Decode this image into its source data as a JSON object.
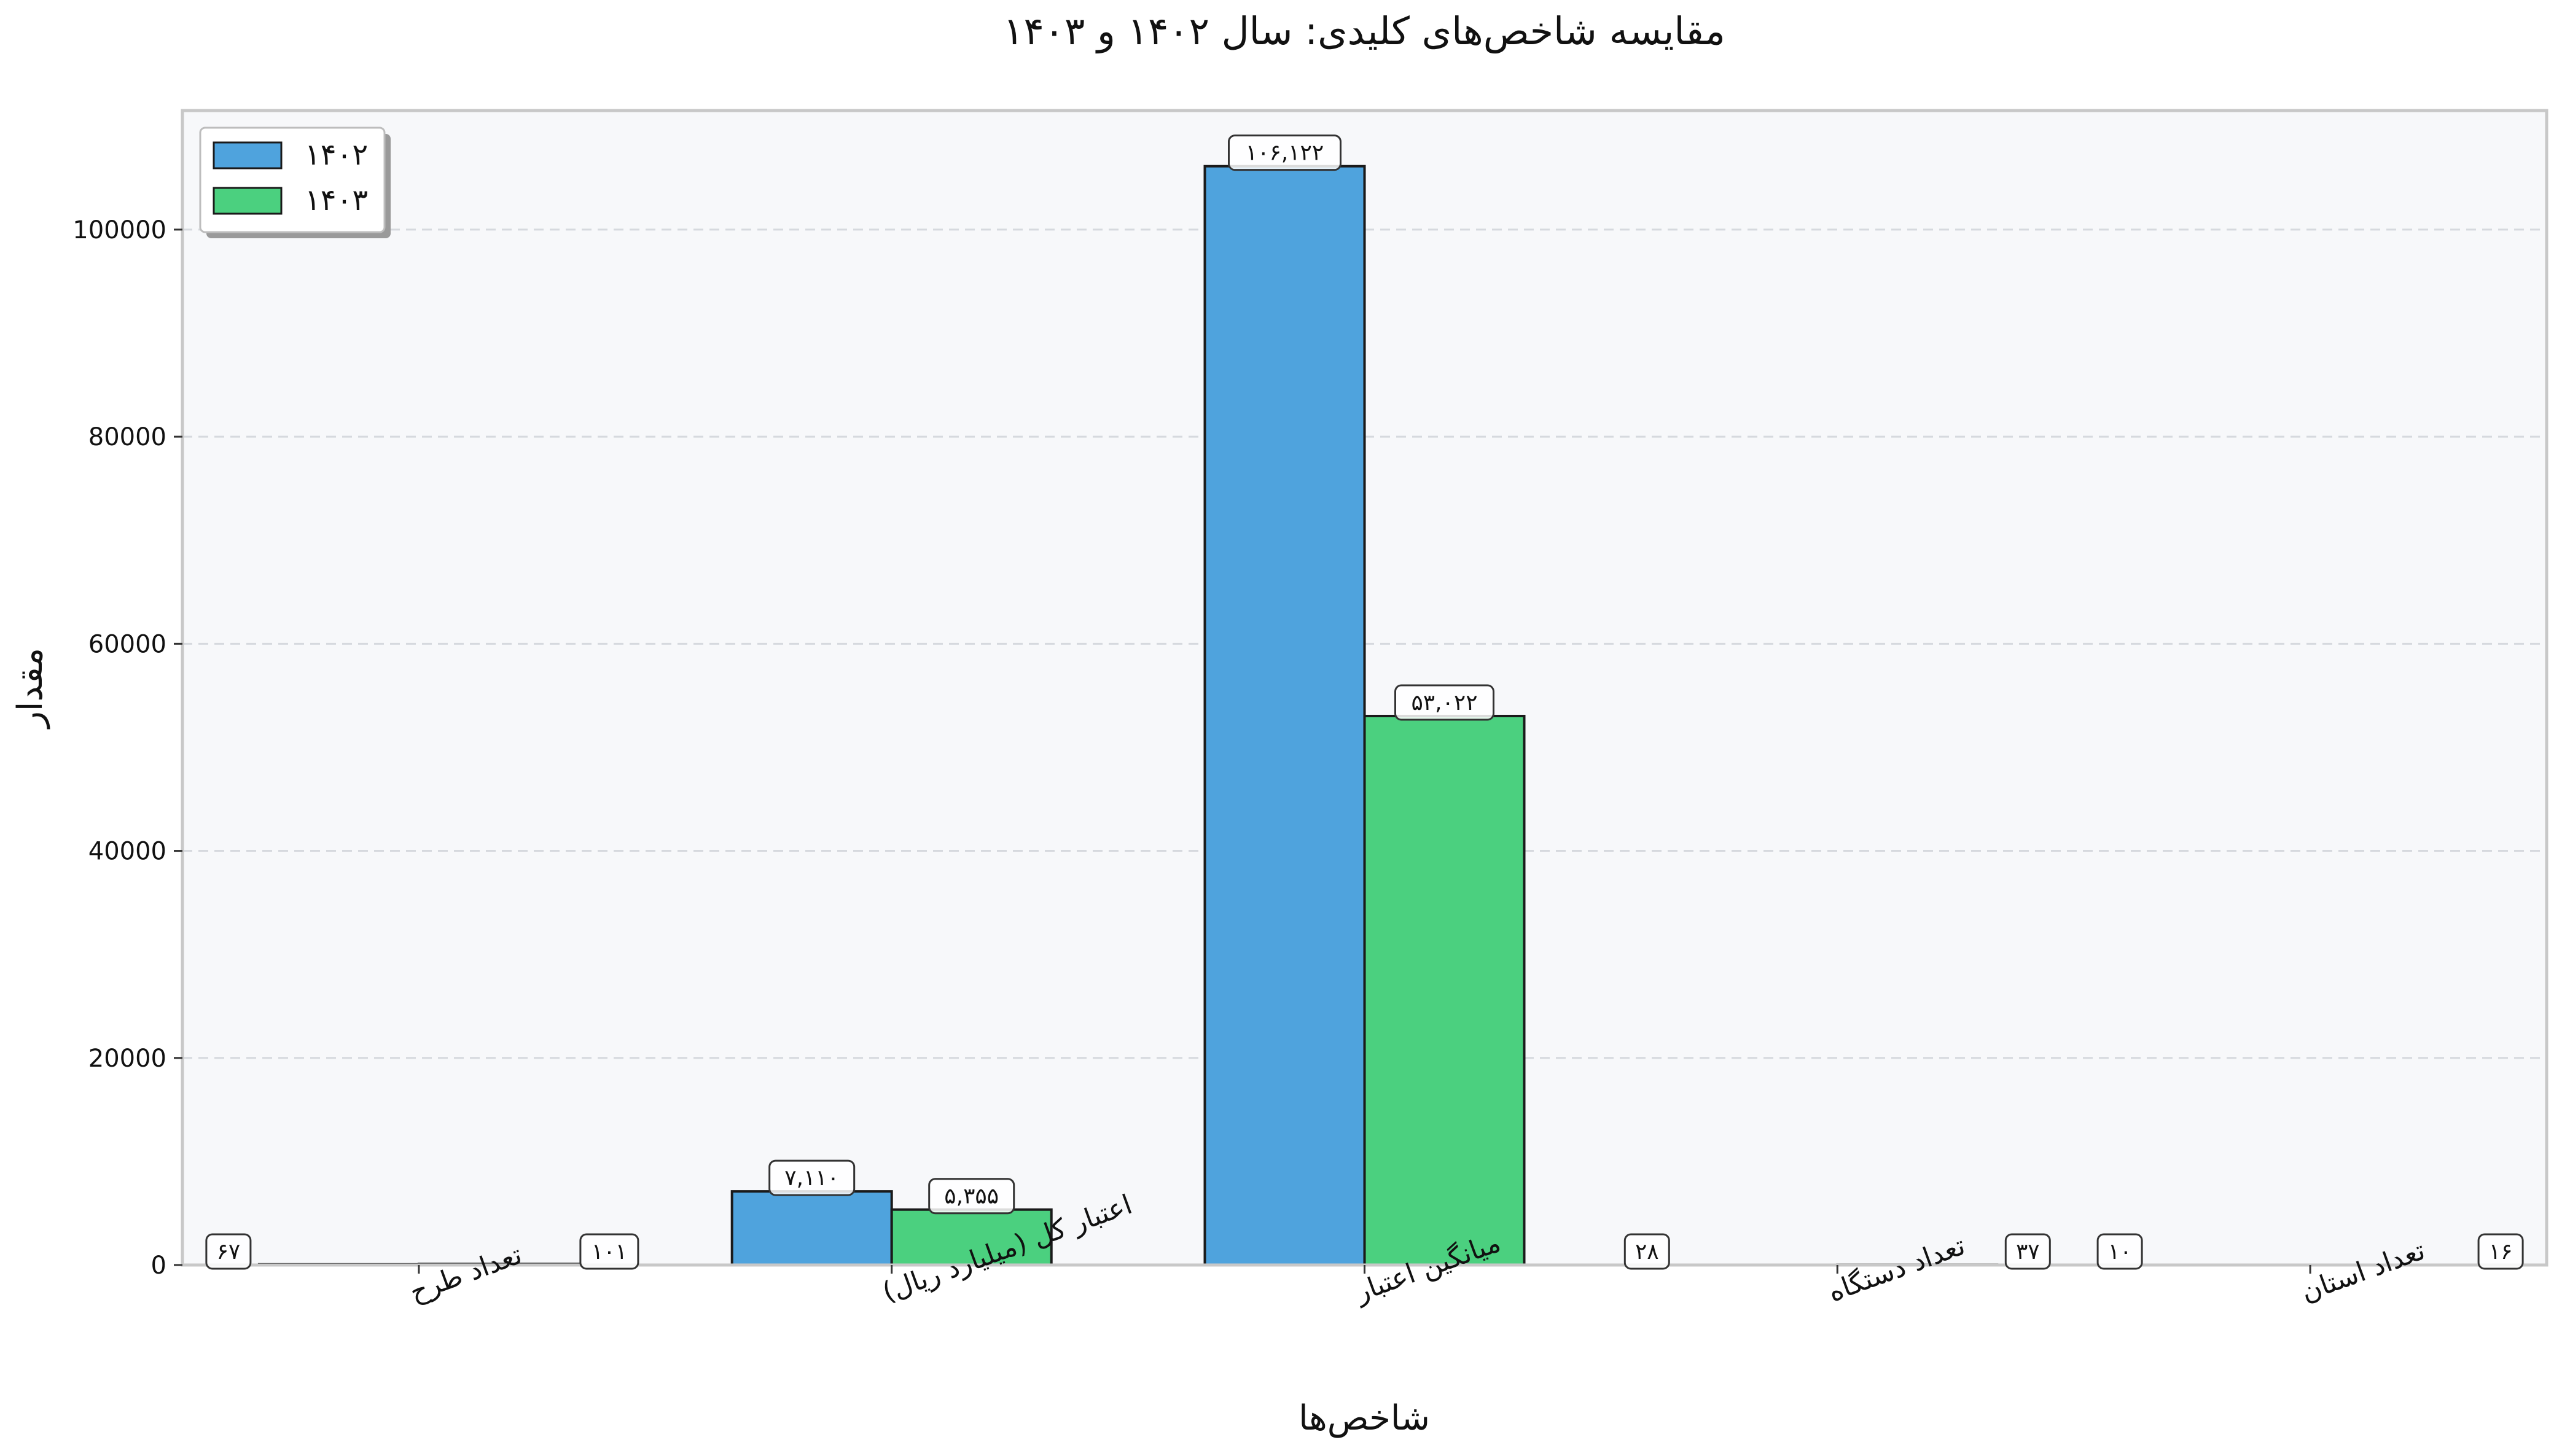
{
  "chart_data": {
    "type": "bar",
    "title": "مقایسه شاخص‌های کلیدی: سال ۱۴۰۲ و ۱۴۰۳",
    "xlabel": "شاخص‌ها",
    "ylabel": "مقدار",
    "categories": [
      "تعداد طرح",
      "اعتبار کل (میلیارد ریال)",
      "میانگین اعتبار",
      "تعداد دستگاه",
      "تعداد استان"
    ],
    "series": [
      {
        "name": "۱۴۰۲",
        "color": "#4fa3dd",
        "values": [
          67,
          7110,
          106122,
          28,
          10
        ],
        "labels": [
          "۶۷",
          "۷,۱۱۰",
          "۱۰۶,۱۲۲",
          "۲۸",
          "۱۰"
        ]
      },
      {
        "name": "۱۴۰۳",
        "color": "#4bd07f",
        "values": [
          101,
          5355,
          53022,
          37,
          16
        ],
        "labels": [
          "۱۰۱",
          "۵,۳۵۵",
          "۵۳,۰۲۲",
          "۳۷",
          "۱۶"
        ]
      }
    ],
    "ylim": [
      0,
      111500
    ],
    "yticks": [
      0,
      20000,
      40000,
      60000,
      80000,
      100000
    ],
    "ytick_labels": [
      "0",
      "20000",
      "40000",
      "60000",
      "80000",
      "100000"
    ],
    "grid": "horizontal dashed",
    "legend": "top-left",
    "plot_background": "#f7f8fa"
  }
}
